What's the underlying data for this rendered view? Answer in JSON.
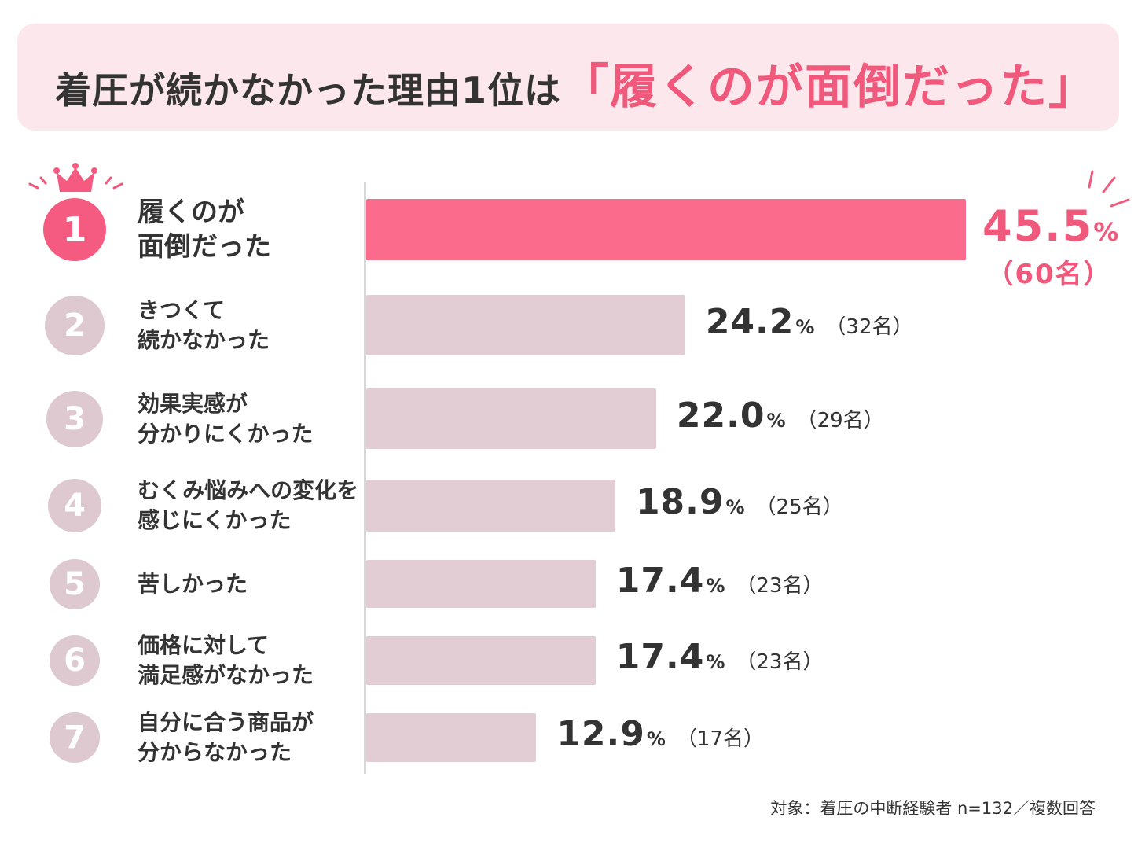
{
  "title": {
    "main": "着圧が続かなかった理由1位は",
    "highlight": "「履くのが面倒だった」"
  },
  "colors": {
    "accent": "#f0587c",
    "bar_first": "#fa6b8c",
    "bar_other": "#e2cdd4",
    "badge_first": "#f55b80",
    "badge_other": "#ddc9cf",
    "banner": "#fce8ec"
  },
  "icons": [
    "crown-icon",
    "sparkle-icon"
  ],
  "chart_data": {
    "type": "bar",
    "orientation": "horizontal",
    "xlim": [
      0,
      50
    ],
    "grid": false,
    "categories": [
      [
        "履くのが",
        "面倒だった"
      ],
      [
        "きつくて",
        "続かなかった"
      ],
      [
        "効果実感が",
        "分かりにくかった"
      ],
      [
        "むくみ悩みへの変化を",
        "感じにくかった"
      ],
      [
        "苦しかった"
      ],
      [
        "価格に対して",
        "満足感がなかった"
      ],
      [
        "自分に合う商品が",
        "分からなかった"
      ]
    ],
    "ranks": [
      "1",
      "2",
      "3",
      "4",
      "5",
      "6",
      "7"
    ],
    "values": [
      45.5,
      24.2,
      22.0,
      18.9,
      17.4,
      17.4,
      12.9
    ],
    "value_labels": [
      "45.5",
      "24.2",
      "22.0",
      "18.9",
      "17.4",
      "17.4",
      "12.9"
    ],
    "percent_sign": "%",
    "counts": [
      "（60名）",
      "（32名）",
      "（29名）",
      "（25名）",
      "（23名）",
      "（23名）",
      "（17名）"
    ]
  },
  "footnote": "対象：着圧の中断経験者 n=132／複数回答"
}
